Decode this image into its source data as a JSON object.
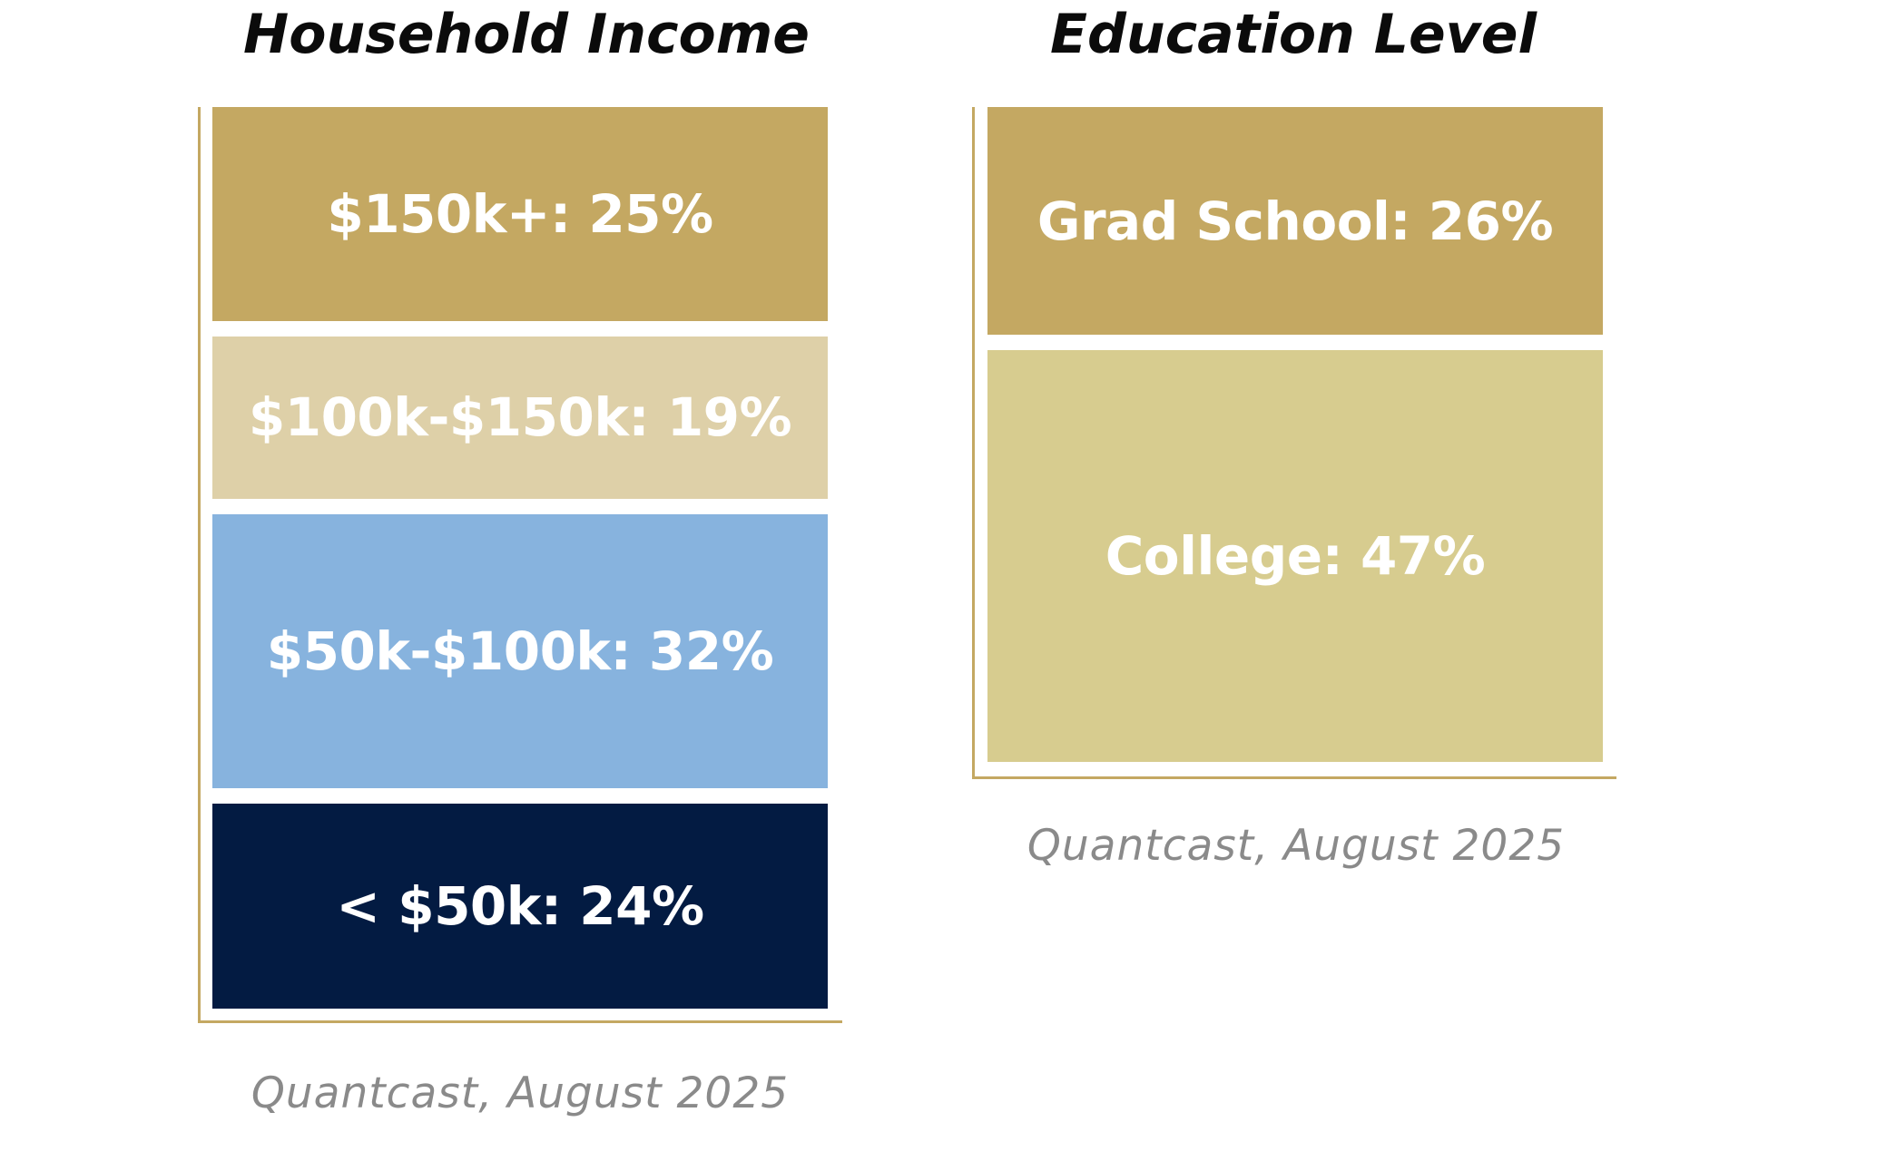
{
  "chart_data": [
    {
      "type": "bar",
      "title": "Household Income",
      "source": "Quantcast, August 2025",
      "segments": [
        {
          "label": "$150k+: 25%",
          "category": "$150k+",
          "value": 25,
          "color": "#c4a862"
        },
        {
          "label": "$100k-$150k: 19%",
          "category": "$100k-$150k",
          "value": 19,
          "color": "#ded0a8"
        },
        {
          "label": "$50k-$100k: 32%",
          "category": "$50k-$100k",
          "value": 32,
          "color": "#87b3de"
        },
        {
          "label": "< $50k: 24%",
          "category": "< $50k",
          "value": 24,
          "color": "#031b42"
        }
      ]
    },
    {
      "type": "bar",
      "title": "Education Level",
      "source": "Quantcast, August 2025",
      "segments": [
        {
          "label": "Grad School: 26%",
          "category": "Grad School",
          "value": 26,
          "color": "#c4a862"
        },
        {
          "label": "College: 47%",
          "category": "College",
          "value": 47,
          "color": "#d7cc8f"
        }
      ]
    }
  ]
}
